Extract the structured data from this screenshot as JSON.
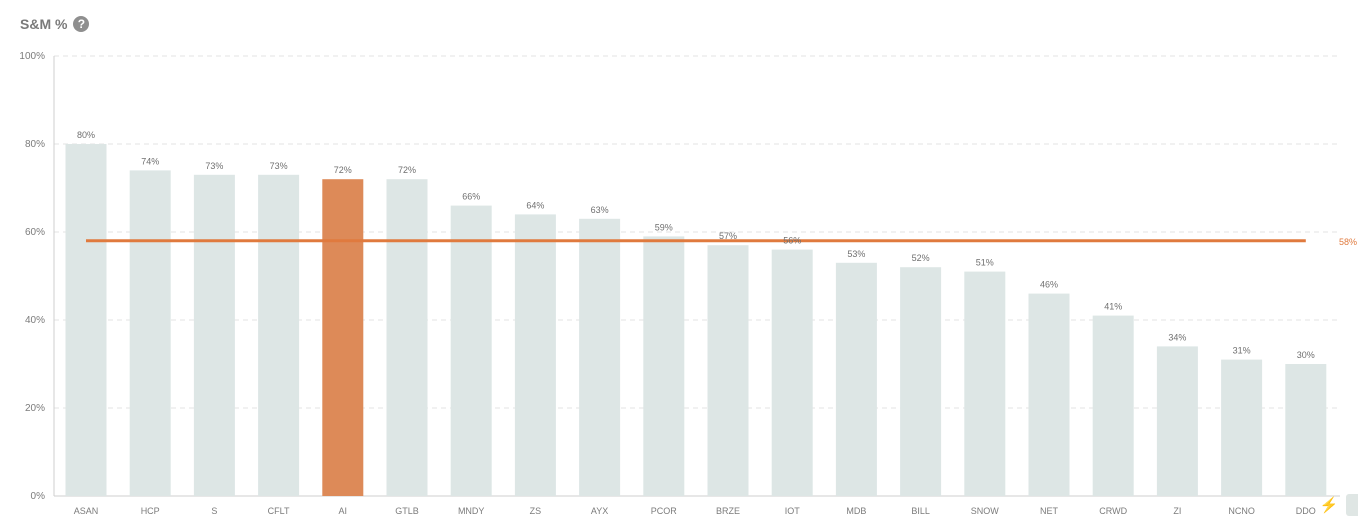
{
  "header": {
    "title": "S&M %",
    "help_icon": "question-circle-icon"
  },
  "chart_data": {
    "type": "bar",
    "title": "S&M %",
    "xlabel": "",
    "ylabel": "",
    "ylim": [
      0,
      100
    ],
    "y_ticks": [
      "0%",
      "20%",
      "40%",
      "60%",
      "80%",
      "100%"
    ],
    "y_tick_values": [
      0,
      20,
      40,
      60,
      80,
      100
    ],
    "grid": true,
    "categories": [
      "ASAN",
      "HCP",
      "S",
      "CFLT",
      "AI",
      "GTLB",
      "MNDY",
      "ZS",
      "AYX",
      "PCOR",
      "BRZE",
      "IOT",
      "MDB",
      "BILL",
      "SNOW",
      "NET",
      "CRWD",
      "ZI",
      "NCNO",
      "DDOG"
    ],
    "tick_labels": [
      "ASAN",
      "HCP",
      "S",
      "CFLT",
      "AI",
      "GTLB",
      "MNDY",
      "ZS",
      "AYX",
      "PCOR",
      "BRZE",
      "IOT",
      "MDB",
      "BILL",
      "SNOW",
      "NET",
      "CRWD",
      "ZI",
      "NCNO",
      "DDO"
    ],
    "values": [
      80,
      74,
      73,
      73,
      72,
      72,
      66,
      64,
      63,
      59,
      57,
      56,
      53,
      52,
      51,
      46,
      41,
      34,
      31,
      30
    ],
    "data_labels": [
      "80%",
      "74%",
      "73%",
      "73%",
      "72%",
      "72%",
      "66%",
      "64%",
      "63%",
      "59%",
      "57%",
      "56%",
      "53%",
      "52%",
      "51%",
      "46%",
      "41%",
      "34%",
      "31%",
      "30%"
    ],
    "highlight_category": "AI",
    "reference_line": {
      "value": 58,
      "label": "58%"
    },
    "colors": {
      "bar": "#dde6e5",
      "highlight": "#dd8a58",
      "reference": "#e07a3e",
      "grid": "#e3e3e3",
      "axis": "#cfcfcf",
      "text": "#6f6f6f",
      "tick_text": "#7b7b7b",
      "ref_label": "#e07a3e"
    }
  },
  "footer": {
    "bolt_icon": "lightning-bolt-icon"
  }
}
